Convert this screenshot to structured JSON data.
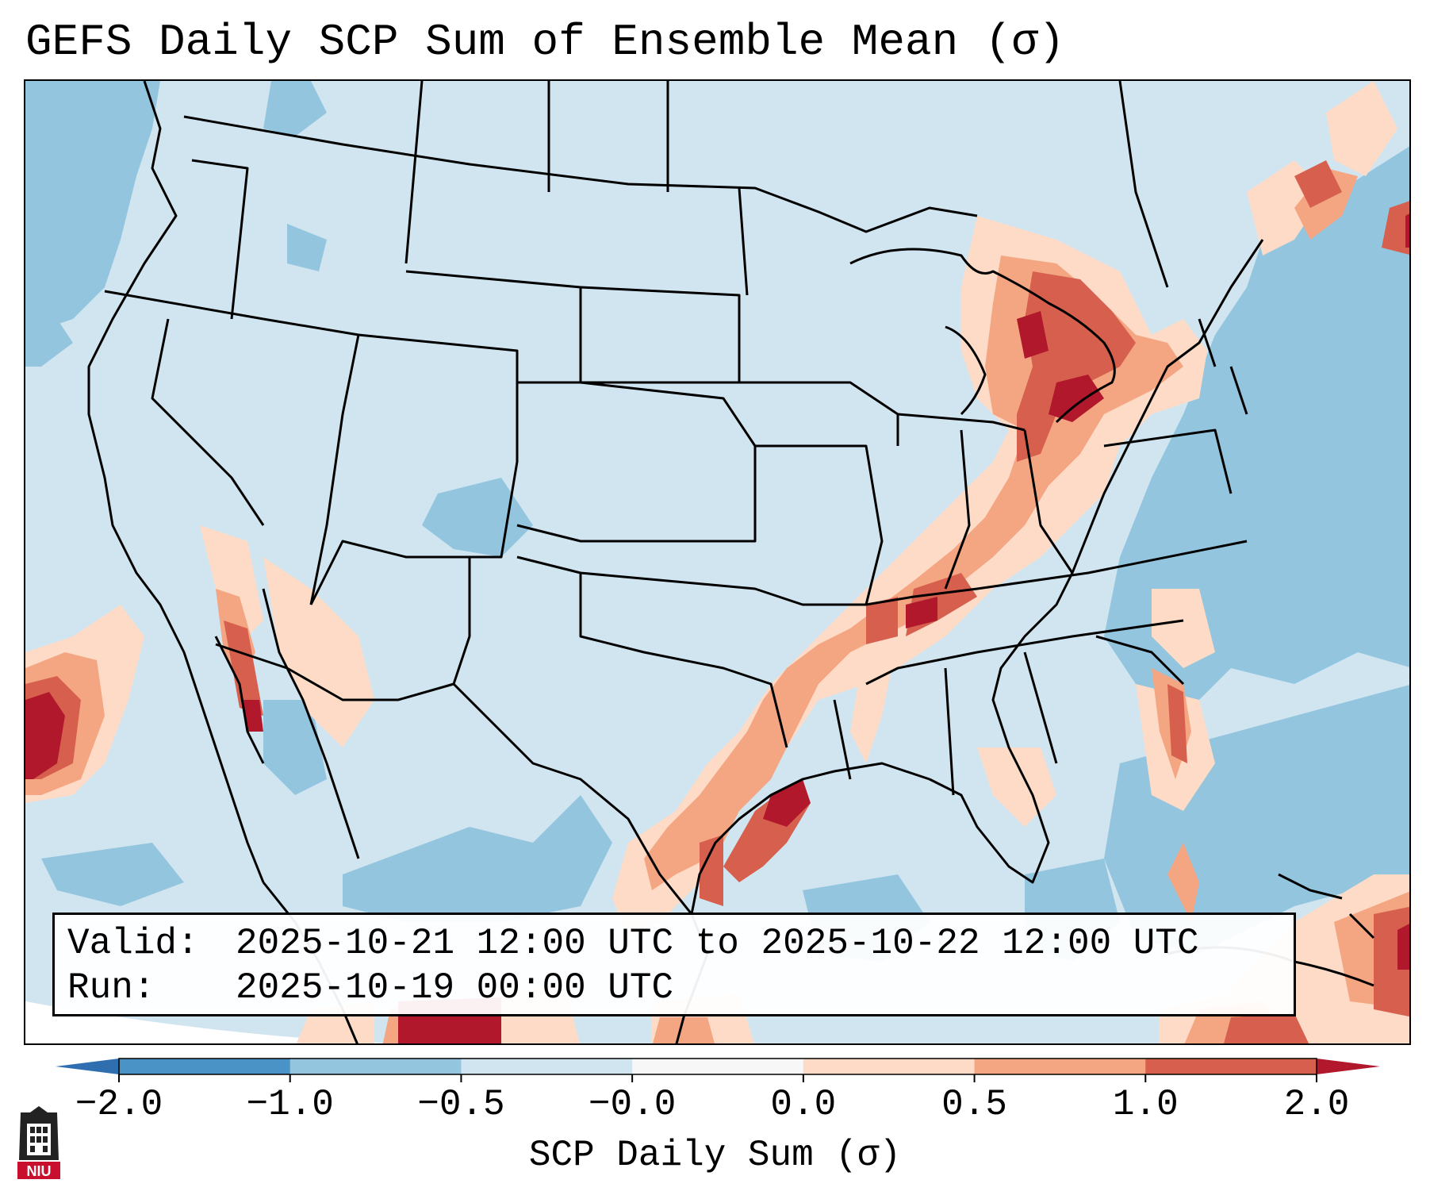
{
  "title": "GEFS Daily SCP Sum of Ensemble Mean (σ)",
  "info": {
    "valid_label": "Valid:",
    "valid_value": "2025-10-21 12:00 UTC to 2025-10-22 12:00 UTC",
    "run_label": "Run:",
    "run_value": "2025-10-19 00:00 UTC"
  },
  "colorbar": {
    "label": "SCP Daily Sum (σ)",
    "ticks": [
      "−2.0",
      "−1.0",
      "−0.5",
      "−0.0",
      "0.0",
      "0.5",
      "1.0",
      "2.0"
    ],
    "bins": [
      {
        "range": "-2.0 to -1.0",
        "color": "#4a93c7"
      },
      {
        "range": "-1.0 to -0.5",
        "color": "#93c5df"
      },
      {
        "range": "-0.5 to -0.0",
        "color": "#d1e5f0"
      },
      {
        "range": "-0.0 to 0.0",
        "color": "#f7f7f7"
      },
      {
        "range": "0.0 to 0.5",
        "color": "#fddbc7"
      },
      {
        "range": "0.5 to 1.0",
        "color": "#f4a582"
      },
      {
        "range": "1.0 to 2.0",
        "color": "#d6604d"
      }
    ],
    "extend_low_color": "#2f6fb0",
    "extend_high_color": "#b2182b"
  },
  "colors": {
    "land_base": "#d1e5f0",
    "ocean_low": "#93c5df",
    "positive_light": "#fddbc7",
    "positive_mid": "#f4a582",
    "positive_high": "#d6604d",
    "positive_max": "#b2182b",
    "boundary": "#000000"
  },
  "logo": {
    "text": "NIU",
    "icon": "niu-logo-icon"
  }
}
